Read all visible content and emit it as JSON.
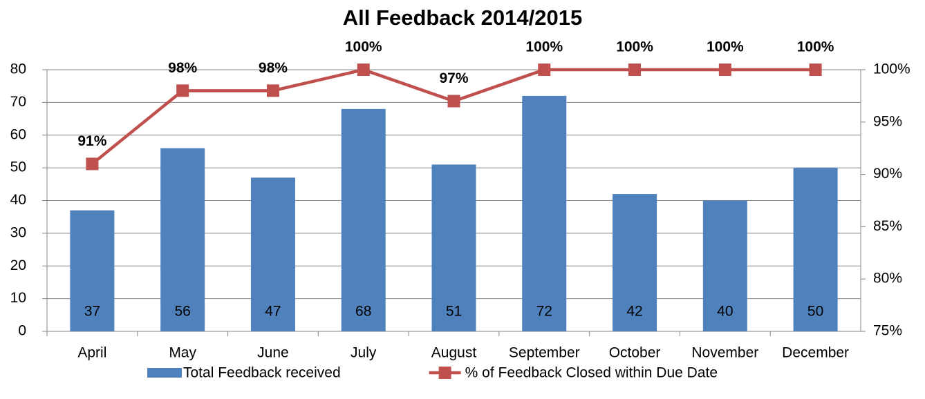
{
  "chart_data": {
    "type": "bar",
    "title": "All Feedback 2014/2015",
    "categories": [
      "April",
      "May",
      "June",
      "July",
      "August",
      "September",
      "October",
      "November",
      "December"
    ],
    "series": [
      {
        "name": "Total Feedback received",
        "type": "bar",
        "color": "#4f81bd",
        "values": [
          37,
          56,
          47,
          68,
          51,
          72,
          42,
          40,
          50
        ]
      },
      {
        "name": "% of Feedback Closed within Due Date",
        "type": "line",
        "axis": "y2",
        "color": "#c0504d",
        "values": [
          91,
          98,
          98,
          100,
          97,
          100,
          100,
          100,
          100
        ],
        "value_labels": [
          "91%",
          "98%",
          "98%",
          "100%",
          "97%",
          "100%",
          "100%",
          "100%",
          "100%"
        ]
      }
    ],
    "ylim": [
      0,
      80
    ],
    "yticks": [
      0,
      10,
      20,
      30,
      40,
      50,
      60,
      70,
      80
    ],
    "y2lim": [
      75,
      100
    ],
    "y2ticks": [
      {
        "value": 75,
        "label": "75%"
      },
      {
        "value": 80,
        "label": "80%"
      },
      {
        "value": 85,
        "label": "85%"
      },
      {
        "value": 90,
        "label": "90%"
      },
      {
        "value": 95,
        "label": "95%"
      },
      {
        "value": 100,
        "label": "100%"
      }
    ],
    "grid": true,
    "legend": "bottom"
  }
}
